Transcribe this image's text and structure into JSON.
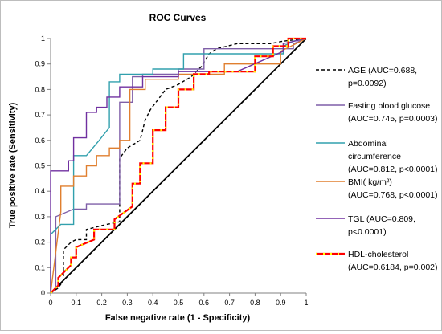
{
  "chart_data": {
    "type": "line",
    "title": "ROC Curves",
    "xlabel": "False negative rate (1 - Specificity)",
    "ylabel": "True positive rate (Sensitivity)",
    "xlim": [
      0,
      1
    ],
    "ylim": [
      0,
      1
    ],
    "xticks": [
      "0",
      "0.1",
      "0.2",
      "0.3",
      "0.4",
      "0.5",
      "0.6",
      "0.7",
      "0.8",
      "0.9",
      "1"
    ],
    "yticks": [
      "0",
      "0.1",
      "0.2",
      "0.3",
      "0.4",
      "0.5",
      "0.6",
      "0.7",
      "0.8",
      "0.9",
      "1"
    ],
    "grid": false,
    "legend_position": "right",
    "reference_line": {
      "x": [
        0,
        1
      ],
      "y": [
        0,
        1
      ],
      "color": "#000000"
    },
    "series": [
      {
        "legend_line1": "AGE (AUC=0.688,",
        "legend_line2": "p=0.0092)",
        "color": "#000000",
        "style": "dashed",
        "x": [
          0,
          0.03,
          0.05,
          0.05,
          0.08,
          0.1,
          0.14,
          0.14,
          0.22,
          0.27,
          0.27,
          0.3,
          0.35,
          0.37,
          0.39,
          0.45,
          0.5,
          0.55,
          0.59,
          0.62,
          0.65,
          0.73,
          0.73,
          0.86,
          0.91,
          1
        ],
        "y": [
          0,
          0.02,
          0.05,
          0.17,
          0.2,
          0.21,
          0.21,
          0.25,
          0.27,
          0.28,
          0.53,
          0.57,
          0.6,
          0.68,
          0.72,
          0.8,
          0.82,
          0.85,
          0.89,
          0.94,
          0.96,
          0.98,
          0.98,
          0.98,
          0.99,
          1
        ]
      },
      {
        "legend_line1": "Fasting blood glucose",
        "legend_line2": "(AUC=0.745, p=0.0003)",
        "color": "#7f5fa8",
        "style": "solid",
        "x": [
          0,
          0.02,
          0.02,
          0.09,
          0.09,
          0.14,
          0.14,
          0.27,
          0.27,
          0.32,
          0.32,
          0.36,
          0.36,
          0.5,
          0.5,
          0.6,
          0.6,
          0.95,
          0.95,
          1
        ],
        "y": [
          0,
          0.02,
          0.3,
          0.33,
          0.33,
          0.33,
          0.35,
          0.35,
          0.75,
          0.75,
          0.85,
          0.85,
          0.86,
          0.86,
          0.88,
          0.88,
          0.96,
          0.96,
          0.98,
          1
        ]
      },
      {
        "legend_line1": "Abdominal",
        "legend_line2": "circumference",
        "legend_line3": "(AUC=0.812, p<0.0001)",
        "color": "#31a0ad",
        "style": "solid",
        "x": [
          0,
          0,
          0.04,
          0.04,
          0.09,
          0.09,
          0.14,
          0.19,
          0.19,
          0.23,
          0.23,
          0.27,
          0.27,
          0.4,
          0.4,
          0.52,
          0.52,
          0.91,
          0.91,
          0.95,
          1
        ],
        "y": [
          0,
          0.23,
          0.27,
          0.27,
          0.27,
          0.54,
          0.54,
          0.6,
          0.6,
          0.65,
          0.83,
          0.83,
          0.86,
          0.86,
          0.88,
          0.88,
          0.94,
          0.94,
          0.97,
          0.99,
          1
        ]
      },
      {
        "legend_line1": "BMI( kg/m²)",
        "legend_line2": "(AUC=0.768, p<0.0001)",
        "color": "#e07f2f",
        "style": "solid",
        "x": [
          0,
          0.04,
          0.04,
          0.09,
          0.09,
          0.14,
          0.14,
          0.18,
          0.18,
          0.23,
          0.23,
          0.27,
          0.27,
          0.31,
          0.31,
          0.37,
          0.37,
          0.5,
          0.5,
          0.68,
          0.68,
          0.9,
          0.9,
          1
        ],
        "y": [
          0,
          0.32,
          0.42,
          0.42,
          0.46,
          0.46,
          0.5,
          0.5,
          0.54,
          0.54,
          0.57,
          0.57,
          0.6,
          0.6,
          0.8,
          0.8,
          0.84,
          0.84,
          0.86,
          0.86,
          0.9,
          0.9,
          0.95,
          1
        ]
      },
      {
        "legend_line1": "TGL (AUC=0.809,",
        "legend_line2": "p<0.0001)",
        "color": "#7030a0",
        "style": "solid",
        "x": [
          0,
          0,
          0.07,
          0.07,
          0.09,
          0.09,
          0.14,
          0.14,
          0.18,
          0.18,
          0.22,
          0.22,
          0.27,
          0.27,
          0.36,
          0.36,
          0.5,
          0.5,
          0.73,
          0.91,
          0.91,
          1
        ],
        "y": [
          0,
          0.48,
          0.48,
          0.52,
          0.52,
          0.61,
          0.61,
          0.71,
          0.71,
          0.73,
          0.73,
          0.77,
          0.77,
          0.81,
          0.81,
          0.85,
          0.85,
          0.87,
          0.87,
          0.95,
          0.98,
          1
        ]
      },
      {
        "legend_line1": "HDL-cholesterol",
        "legend_line2": "(AUC=0.6184, p=0.002)",
        "color": "#ff0000",
        "marker_color": "#ffff00",
        "style": "dashdot",
        "x": [
          0,
          0.03,
          0.03,
          0.08,
          0.08,
          0.1,
          0.1,
          0.17,
          0.17,
          0.25,
          0.25,
          0.32,
          0.32,
          0.35,
          0.35,
          0.4,
          0.4,
          0.45,
          0.45,
          0.5,
          0.5,
          0.56,
          0.56,
          0.62,
          0.62,
          0.8,
          0.8,
          0.87,
          0.87,
          0.93,
          0.93,
          1
        ],
        "y": [
          0,
          0.03,
          0.06,
          0.11,
          0.14,
          0.14,
          0.18,
          0.21,
          0.25,
          0.25,
          0.29,
          0.34,
          0.43,
          0.43,
          0.51,
          0.51,
          0.64,
          0.64,
          0.73,
          0.73,
          0.8,
          0.8,
          0.86,
          0.86,
          0.87,
          0.87,
          0.93,
          0.93,
          0.97,
          0.97,
          1,
          1
        ]
      }
    ]
  }
}
